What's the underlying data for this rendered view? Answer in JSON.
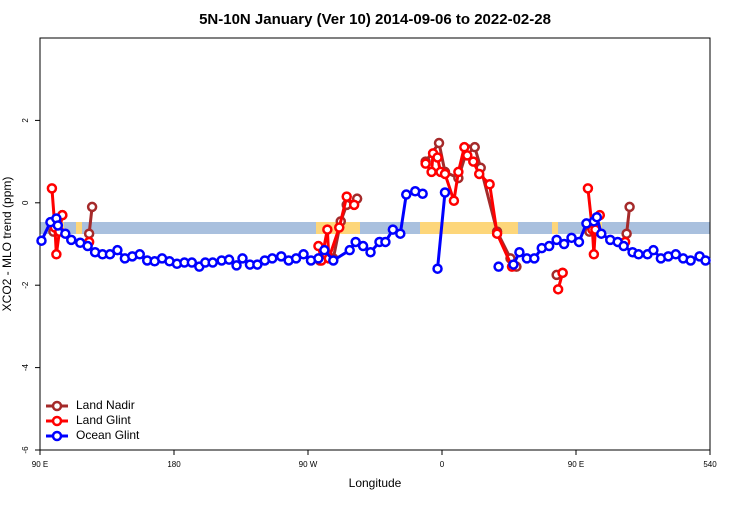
{
  "chart_data": {
    "type": "line",
    "title": "5N-10N January (Ver 10)   2014-09-06 to 2022-02-28",
    "x_label": "Longitude",
    "y_label": "XCO2 - MLO trend (ppm)",
    "xlim": [
      90,
      540
    ],
    "ylim": [
      -6,
      4
    ],
    "xticks": [
      {
        "value": 90,
        "label": "90 E"
      },
      180,
      {
        "value": 270,
        "label": "90 W"
      },
      0,
      {
        "value": 450,
        "label": "90 E"
      },
      540
    ],
    "yticks": [
      -6,
      -4,
      -2,
      0,
      2
    ],
    "legend": "bottom-left",
    "series": [
      {
        "name": "Land Nadir",
        "color": "#a52a2a",
        "x": [
          99,
          101,
          105,
          null,
          123,
          125,
          null,
          278,
          282,
          287,
          292,
          296,
          303,
          null,
          349,
          358,
          362,
          371,
          377,
          382,
          386,
          397,
          406,
          410,
          null,
          437,
          441,
          null,
          459,
          462,
          null,
          484,
          486
        ],
        "values": [
          -0.7,
          -0.45,
          -0.3,
          null,
          -0.75,
          -0.1,
          null,
          -1.4,
          -1.3,
          -1.35,
          -0.45,
          -0.05,
          0.1,
          null,
          1.0,
          1.45,
          0.75,
          0.6,
          1.3,
          1.35,
          0.85,
          -0.7,
          -1.35,
          -1.55,
          null,
          -1.75,
          -1.7,
          null,
          -0.7,
          -0.45,
          null,
          -0.75,
          -0.1
        ]
      },
      {
        "name": "Land Glint",
        "color": "#ff0000",
        "x": [
          98,
          100,
          101,
          103,
          105,
          null,
          123,
          null,
          277,
          279,
          283,
          284,
          291,
          296,
          301,
          null,
          349,
          353,
          354,
          357,
          359,
          362,
          368,
          371,
          375,
          377,
          381,
          385,
          392,
          397,
          407,
          null,
          438,
          441,
          null,
          458,
          461,
          462,
          463,
          466,
          null,
          483
        ],
        "values": [
          0.35,
          -0.6,
          -1.25,
          -0.7,
          -0.3,
          null,
          -0.95,
          null,
          -1.05,
          -1.4,
          -0.65,
          -1.35,
          -0.6,
          0.15,
          -0.05,
          null,
          0.95,
          0.75,
          1.2,
          1.1,
          0.75,
          0.7,
          0.05,
          0.75,
          1.35,
          1.15,
          1.0,
          0.7,
          0.45,
          -0.75,
          -1.55,
          null,
          -2.1,
          -1.7,
          null,
          0.35,
          -0.65,
          -1.25,
          -0.65,
          -0.3,
          null,
          -0.95
        ]
      },
      {
        "name": "Ocean Glint",
        "color": "#0000ff",
        "x": [
          91,
          97,
          101,
          102,
          107,
          111,
          117,
          122,
          127,
          132,
          137,
          142,
          147,
          152,
          157,
          162,
          167,
          172,
          177,
          182,
          187,
          192,
          197,
          201,
          206,
          212,
          217,
          222,
          226,
          231,
          236,
          241,
          246,
          252,
          257,
          262,
          267,
          272,
          277,
          281,
          287,
          298,
          302,
          307,
          312,
          318,
          322,
          327,
          332,
          336,
          342,
          347,
          null,
          357,
          362,
          null,
          398,
          null,
          408,
          412,
          417,
          422,
          427,
          432,
          437,
          442,
          447,
          452,
          457,
          462,
          464,
          467,
          473,
          478,
          482,
          488,
          492,
          498,
          502,
          507,
          512,
          517,
          522,
          527,
          533,
          537
        ],
        "values": [
          -0.92,
          -0.47,
          -0.38,
          -0.55,
          -0.75,
          -0.9,
          -0.97,
          -1.05,
          -1.2,
          -1.25,
          -1.25,
          -1.15,
          -1.35,
          -1.3,
          -1.25,
          -1.4,
          -1.42,
          -1.35,
          -1.42,
          -1.48,
          -1.45,
          -1.45,
          -1.55,
          -1.45,
          -1.45,
          -1.4,
          -1.38,
          -1.52,
          -1.35,
          -1.5,
          -1.5,
          -1.4,
          -1.35,
          -1.3,
          -1.4,
          -1.35,
          -1.25,
          -1.4,
          -1.35,
          -1.15,
          -1.4,
          -1.15,
          -0.95,
          -1.05,
          -1.2,
          -0.95,
          -0.95,
          -0.65,
          -0.75,
          0.2,
          0.28,
          0.22,
          null,
          -1.6,
          0.25,
          null,
          -1.55,
          null,
          -1.5,
          -1.2,
          -1.35,
          -1.35,
          -1.1,
          -1.05,
          -0.9,
          -1.0,
          -0.85,
          -0.95,
          -0.5,
          -0.45,
          -0.35,
          -0.75,
          -0.9,
          -0.95,
          -1.05,
          -1.2,
          -1.25,
          -1.25,
          -1.15,
          -1.35,
          -1.3,
          -1.25,
          -1.35,
          -1.4,
          -1.3,
          -1.4
        ]
      }
    ]
  }
}
